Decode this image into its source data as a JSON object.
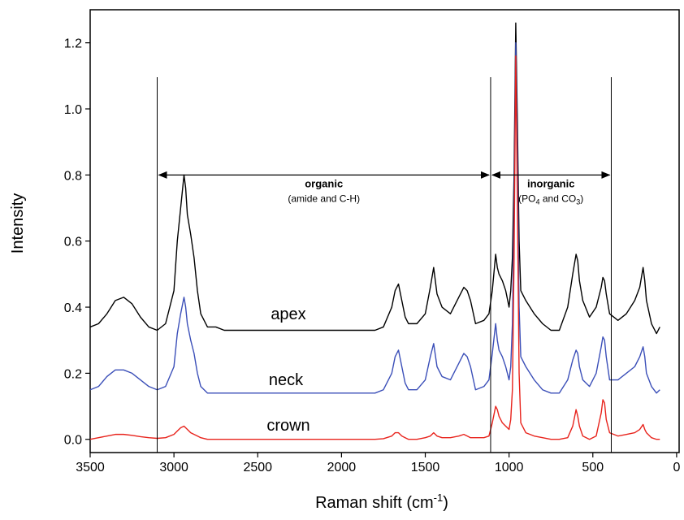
{
  "chart_data": {
    "type": "line",
    "x_label": [
      "Raman shift (cm",
      "-1",
      ")"
    ],
    "y_label": "Intensity",
    "xlim": [
      3500,
      -15
    ],
    "ylim": [
      -0.04,
      1.3
    ],
    "xticks": [
      3500,
      3000,
      2500,
      2000,
      1500,
      1000,
      500,
      0
    ],
    "yticks": [
      {
        "value": 0,
        "label": "0.0"
      },
      0.2,
      0.4,
      0.6,
      0.8,
      {
        "value": 1,
        "label": "1.0"
      },
      1.2
    ],
    "x": [
      3500,
      3450,
      3400,
      3350,
      3300,
      3250,
      3200,
      3150,
      3100,
      3050,
      3000,
      2980,
      2960,
      2940,
      2930,
      2920,
      2900,
      2880,
      2860,
      2840,
      2800,
      2750,
      2700,
      2600,
      2500,
      2400,
      2300,
      2200,
      2100,
      2000,
      1900,
      1800,
      1750,
      1700,
      1680,
      1660,
      1640,
      1620,
      1600,
      1550,
      1500,
      1470,
      1450,
      1430,
      1400,
      1350,
      1300,
      1270,
      1250,
      1230,
      1200,
      1150,
      1120,
      1100,
      1080,
      1070,
      1060,
      1040,
      1020,
      1000,
      990,
      980,
      970,
      960,
      950,
      940,
      930,
      900,
      850,
      800,
      750,
      700,
      650,
      620,
      600,
      590,
      580,
      560,
      520,
      480,
      450,
      440,
      430,
      420,
      400,
      350,
      300,
      250,
      220,
      200,
      190,
      180,
      150,
      120,
      100
    ],
    "series": [
      {
        "name": "apex",
        "color": "#000000",
        "values": [
          0.34,
          0.35,
          0.38,
          0.42,
          0.43,
          0.41,
          0.37,
          0.34,
          0.33,
          0.35,
          0.45,
          0.6,
          0.7,
          0.8,
          0.76,
          0.68,
          0.62,
          0.55,
          0.45,
          0.38,
          0.34,
          0.34,
          0.33,
          0.33,
          0.33,
          0.33,
          0.33,
          0.33,
          0.33,
          0.33,
          0.33,
          0.33,
          0.34,
          0.4,
          0.45,
          0.47,
          0.42,
          0.37,
          0.35,
          0.35,
          0.38,
          0.46,
          0.52,
          0.44,
          0.4,
          0.38,
          0.43,
          0.46,
          0.45,
          0.42,
          0.35,
          0.36,
          0.38,
          0.45,
          0.56,
          0.52,
          0.5,
          0.48,
          0.45,
          0.4,
          0.45,
          0.55,
          0.8,
          1.26,
          0.95,
          0.6,
          0.45,
          0.42,
          0.38,
          0.35,
          0.33,
          0.33,
          0.4,
          0.5,
          0.56,
          0.54,
          0.48,
          0.42,
          0.37,
          0.4,
          0.46,
          0.49,
          0.48,
          0.44,
          0.38,
          0.36,
          0.38,
          0.42,
          0.46,
          0.52,
          0.48,
          0.42,
          0.35,
          0.32,
          0.34
        ]
      },
      {
        "name": "neck",
        "color": "#3b4fb8",
        "values": [
          0.15,
          0.16,
          0.19,
          0.21,
          0.21,
          0.2,
          0.18,
          0.16,
          0.15,
          0.16,
          0.22,
          0.32,
          0.38,
          0.43,
          0.4,
          0.35,
          0.3,
          0.26,
          0.2,
          0.16,
          0.14,
          0.14,
          0.14,
          0.14,
          0.14,
          0.14,
          0.14,
          0.14,
          0.14,
          0.14,
          0.14,
          0.14,
          0.15,
          0.2,
          0.25,
          0.27,
          0.22,
          0.17,
          0.15,
          0.15,
          0.18,
          0.25,
          0.29,
          0.22,
          0.19,
          0.18,
          0.23,
          0.26,
          0.25,
          0.22,
          0.15,
          0.16,
          0.18,
          0.26,
          0.35,
          0.3,
          0.27,
          0.25,
          0.22,
          0.18,
          0.22,
          0.35,
          0.7,
          1.2,
          0.85,
          0.4,
          0.25,
          0.22,
          0.18,
          0.15,
          0.14,
          0.14,
          0.18,
          0.24,
          0.27,
          0.26,
          0.22,
          0.18,
          0.16,
          0.2,
          0.28,
          0.31,
          0.3,
          0.25,
          0.18,
          0.18,
          0.2,
          0.22,
          0.25,
          0.28,
          0.25,
          0.2,
          0.16,
          0.14,
          0.15
        ]
      },
      {
        "name": "crown",
        "color": "#e8231c",
        "values": [
          0,
          0.005,
          0.01,
          0.015,
          0.015,
          0.012,
          0.008,
          0.005,
          0.003,
          0.005,
          0.015,
          0.025,
          0.035,
          0.04,
          0.035,
          0.03,
          0.02,
          0.015,
          0.01,
          0.005,
          0,
          0,
          0,
          0,
          0,
          0,
          0,
          0,
          0,
          0,
          0,
          0,
          0.002,
          0.01,
          0.02,
          0.02,
          0.01,
          0.005,
          0,
          0,
          0.005,
          0.01,
          0.02,
          0.01,
          0.005,
          0.005,
          0.01,
          0.015,
          0.01,
          0.005,
          0.005,
          0.005,
          0.01,
          0.05,
          0.1,
          0.09,
          0.07,
          0.05,
          0.04,
          0.03,
          0.06,
          0.15,
          0.55,
          1.16,
          0.7,
          0.2,
          0.05,
          0.02,
          0.01,
          0.005,
          0,
          0,
          0.005,
          0.04,
          0.09,
          0.07,
          0.04,
          0.01,
          0,
          0.01,
          0.08,
          0.12,
          0.11,
          0.06,
          0.02,
          0.01,
          0.015,
          0.02,
          0.03,
          0.045,
          0.03,
          0.02,
          0.005,
          0,
          0
        ]
      }
    ],
    "regions": [
      {
        "label": "organic",
        "sublabel": [
          "(amide and C-H)"
        ],
        "from": 3100,
        "to": 1110,
        "y": 0.8
      },
      {
        "label": "inorganic",
        "sublabel": [
          "(PO",
          "4",
          " and CO",
          "3",
          ")"
        ],
        "from": 1110,
        "to": 390,
        "y": 0.8
      }
    ]
  }
}
